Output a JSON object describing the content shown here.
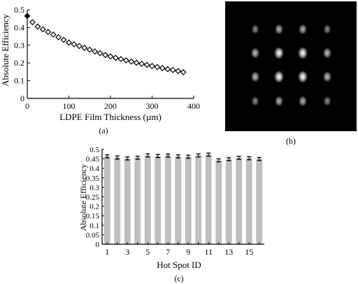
{
  "panels": {
    "a": {
      "caption": "(a)",
      "chart_ref": 0
    },
    "b": {
      "caption": "(b)",
      "background": "#000000",
      "spot_color": "#ffffff",
      "grid": {
        "rows": 4,
        "cols": 4
      },
      "spot_brightness": [
        [
          0.55,
          0.7,
          0.7,
          0.55
        ],
        [
          0.75,
          1.0,
          1.0,
          0.75
        ],
        [
          0.75,
          1.0,
          1.0,
          0.75
        ],
        [
          0.55,
          0.7,
          0.7,
          0.55
        ]
      ]
    },
    "c": {
      "caption": "(c)",
      "chart_ref": 1
    }
  },
  "chart_data": [
    {
      "type": "scatter",
      "marker": "diamond",
      "xlabel": "LDPE Film Thickness (µm)",
      "ylabel": "Absolute Efficiency",
      "xlim": [
        0,
        400
      ],
      "ylim": [
        0,
        0.5
      ],
      "xticks": [
        0,
        100,
        200,
        300,
        400
      ],
      "yticks": [
        0,
        0.1,
        0.2,
        0.3,
        0.4,
        0.5
      ],
      "grid": false,
      "x": [
        0,
        12.5,
        25,
        37.5,
        50,
        62.5,
        75,
        87.5,
        100,
        112.5,
        125,
        137.5,
        150,
        162.5,
        175,
        187.5,
        200,
        212.5,
        225,
        237.5,
        250,
        262.5,
        275,
        287.5,
        300,
        312.5,
        325,
        337.5,
        350,
        362.5,
        375
      ],
      "y": [
        0.465,
        0.43,
        0.405,
        0.39,
        0.375,
        0.36,
        0.345,
        0.33,
        0.315,
        0.305,
        0.295,
        0.285,
        0.275,
        0.265,
        0.255,
        0.245,
        0.237,
        0.229,
        0.222,
        0.215,
        0.208,
        0.201,
        0.195,
        0.189,
        0.183,
        0.177,
        0.171,
        0.165,
        0.16,
        0.154,
        0.148
      ]
    },
    {
      "type": "bar",
      "xlabel": "Hot Spot ID",
      "ylabel": "Absolute Efficiency",
      "categories": [
        1,
        2,
        3,
        4,
        5,
        6,
        7,
        8,
        9,
        10,
        11,
        12,
        13,
        14,
        15,
        16
      ],
      "xtick_labels": [
        "1",
        "3",
        "5",
        "7",
        "9",
        "11",
        "13",
        "15"
      ],
      "values": [
        0.463,
        0.457,
        0.452,
        0.456,
        0.468,
        0.465,
        0.467,
        0.463,
        0.461,
        0.468,
        0.472,
        0.442,
        0.448,
        0.455,
        0.453,
        0.449
      ],
      "errors": [
        0.008,
        0.008,
        0.008,
        0.008,
        0.008,
        0.008,
        0.008,
        0.008,
        0.008,
        0.008,
        0.008,
        0.008,
        0.008,
        0.008,
        0.008,
        0.008
      ],
      "ylim": [
        0,
        0.5
      ],
      "yticks": [
        0,
        0.05,
        0.1,
        0.15,
        0.2,
        0.25,
        0.3,
        0.35,
        0.4,
        0.45,
        0.5
      ],
      "ytick_labels": [
        "0",
        "0.05",
        "0.1",
        "0.15",
        "0.2",
        "0.25",
        "0.3",
        "0.35",
        "0.4",
        "0.45",
        "0.5"
      ],
      "bar_color": "#bfbfbf",
      "grid": false
    }
  ]
}
